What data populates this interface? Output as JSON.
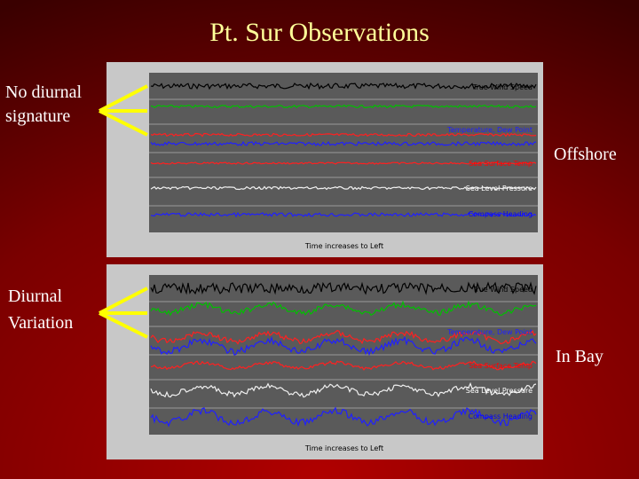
{
  "title": "Pt. Sur Observations",
  "labels": {
    "top_left": [
      "No diurnal",
      "signature"
    ],
    "top_right": "Offshore",
    "bottom_left": [
      "Diurnal",
      "Variation"
    ],
    "bottom_right": "In Bay"
  },
  "plot_legends": [
    "True Wind Speed",
    "Temperature, Dew Point",
    "Sea Surface Temp",
    "Sea Level Pressure",
    "Compass Heading"
  ],
  "plot_footer": "Time increases to Left"
}
